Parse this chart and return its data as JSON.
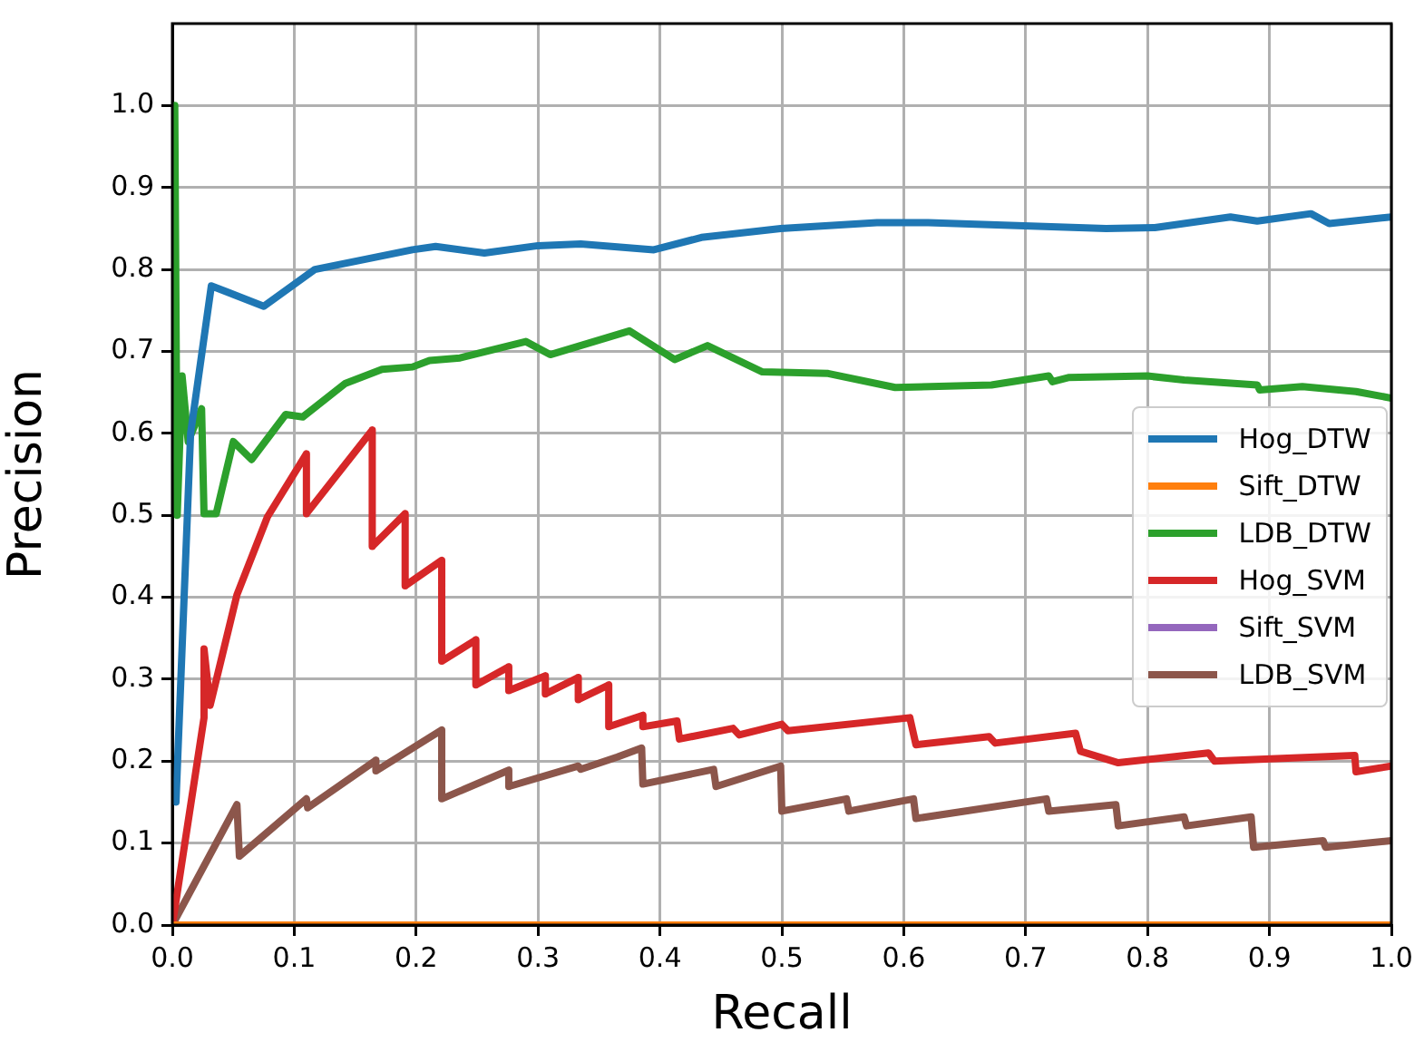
{
  "chart_data": {
    "type": "line",
    "xlabel": "Recall",
    "ylabel": "Precision",
    "xlim": [
      0,
      1.0
    ],
    "ylim": [
      0,
      1.1
    ],
    "xticks": [
      {
        "value": 0,
        "label": "0.0"
      },
      0.1,
      0.2,
      0.3,
      0.4,
      0.5,
      0.6,
      0.7,
      0.8,
      0.9,
      {
        "value": 1,
        "label": "1.0"
      }
    ],
    "yticks": [
      {
        "value": 0,
        "label": "0.0"
      },
      0.1,
      0.2,
      0.3,
      0.4,
      0.5,
      0.6,
      0.7,
      0.8,
      0.9,
      {
        "value": 1,
        "label": "1.0"
      }
    ],
    "grid": true,
    "legend": "right",
    "marker": "none",
    "line_style": "solid",
    "series": [
      {
        "name": "Hog_DTW",
        "color": "#1f77b4",
        "x": [
          0.003,
          0.015,
          0.032,
          0.075,
          0.117,
          0.197,
          0.216,
          0.256,
          0.3,
          0.335,
          0.395,
          0.434,
          0.499,
          0.578,
          0.62,
          0.766,
          0.806,
          0.868,
          0.89,
          0.934,
          0.949,
          1.0
        ],
        "values": [
          0.15,
          0.6,
          0.78,
          0.755,
          0.8,
          0.824,
          0.828,
          0.82,
          0.829,
          0.831,
          0.824,
          0.839,
          0.85,
          0.857,
          0.857,
          0.85,
          0.851,
          0.864,
          0.859,
          0.868,
          0.856,
          0.864
        ]
      },
      {
        "name": "Sift_DTW",
        "color": "#ff7f0e",
        "x": [
          0,
          1.0
        ],
        "values": [
          0,
          0
        ]
      },
      {
        "name": "LDB_DTW",
        "color": "#2ca02c",
        "x": [
          0.002,
          0.004,
          0.008,
          0.013,
          0.024,
          0.026,
          0.036,
          0.05,
          0.065,
          0.093,
          0.107,
          0.142,
          0.172,
          0.197,
          0.211,
          0.236,
          0.29,
          0.31,
          0.375,
          0.412,
          0.439,
          0.484,
          0.538,
          0.593,
          0.672,
          0.719,
          0.722,
          0.735,
          0.8,
          0.83,
          0.89,
          0.892,
          0.927,
          0.971,
          1.0
        ],
        "values": [
          1.0,
          0.5,
          0.67,
          0.59,
          0.63,
          0.502,
          0.502,
          0.59,
          0.568,
          0.623,
          0.62,
          0.661,
          0.678,
          0.681,
          0.689,
          0.692,
          0.712,
          0.696,
          0.725,
          0.69,
          0.707,
          0.675,
          0.673,
          0.656,
          0.659,
          0.67,
          0.663,
          0.668,
          0.67,
          0.665,
          0.659,
          0.653,
          0.657,
          0.651,
          0.643
        ]
      },
      {
        "name": "Hog_SVM",
        "color": "#d62728",
        "x": [
          0,
          0.026,
          0.026,
          0.031,
          0.053,
          0.078,
          0.11,
          0.11,
          0.164,
          0.164,
          0.191,
          0.191,
          0.221,
          0.221,
          0.249,
          0.249,
          0.276,
          0.276,
          0.306,
          0.306,
          0.333,
          0.333,
          0.358,
          0.358,
          0.386,
          0.386,
          0.414,
          0.416,
          0.46,
          0.465,
          0.5,
          0.505,
          0.605,
          0.61,
          0.67,
          0.675,
          0.741,
          0.745,
          0.776,
          0.85,
          0.855,
          0.97,
          0.971,
          1.0
        ],
        "values": [
          0,
          0.253,
          0.337,
          0.268,
          0.403,
          0.498,
          0.575,
          0.502,
          0.604,
          0.462,
          0.502,
          0.414,
          0.445,
          0.322,
          0.348,
          0.293,
          0.315,
          0.286,
          0.304,
          0.282,
          0.302,
          0.275,
          0.293,
          0.242,
          0.256,
          0.242,
          0.249,
          0.227,
          0.24,
          0.232,
          0.245,
          0.237,
          0.253,
          0.22,
          0.23,
          0.222,
          0.234,
          0.212,
          0.198,
          0.21,
          0.2,
          0.207,
          0.187,
          0.194
        ]
      },
      {
        "name": "Sift_SVM",
        "color": "#9467bd"
      },
      {
        "name": "LDB_SVM",
        "color": "#8c564b",
        "x": [
          0,
          0.053,
          0.055,
          0.11,
          0.111,
          0.167,
          0.167,
          0.221,
          0.221,
          0.276,
          0.276,
          0.333,
          0.335,
          0.365,
          0.385,
          0.386,
          0.444,
          0.446,
          0.499,
          0.5,
          0.553,
          0.555,
          0.608,
          0.61,
          0.717,
          0.719,
          0.774,
          0.776,
          0.83,
          0.832,
          0.885,
          0.887,
          0.944,
          0.946,
          1.0
        ],
        "values": [
          0,
          0.147,
          0.084,
          0.154,
          0.143,
          0.201,
          0.188,
          0.238,
          0.154,
          0.189,
          0.169,
          0.194,
          0.19,
          0.205,
          0.216,
          0.172,
          0.19,
          0.169,
          0.194,
          0.139,
          0.154,
          0.139,
          0.154,
          0.13,
          0.154,
          0.139,
          0.147,
          0.121,
          0.132,
          0.121,
          0.132,
          0.095,
          0.103,
          0.095,
          0.103
        ]
      }
    ]
  }
}
